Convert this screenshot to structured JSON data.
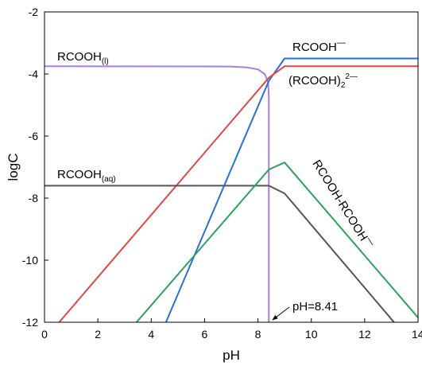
{
  "chart_data": {
    "type": "line",
    "title": "",
    "xlabel": "pH",
    "ylabel": "logC",
    "xlim": [
      0,
      14
    ],
    "ylim": [
      -12,
      -2
    ],
    "xticks": [
      "0",
      "2",
      "4",
      "6",
      "8",
      "10",
      "12",
      "14"
    ],
    "yticks": [
      "-2",
      "-4",
      "-6",
      "-8",
      "-10",
      "-12"
    ],
    "grid": false,
    "legend": "none",
    "series": [
      {
        "name": "RCOOH(l)",
        "color": "#a77de0",
        "points": [
          [
            0,
            -3.75
          ],
          [
            7.0,
            -3.76
          ],
          [
            7.6,
            -3.79
          ],
          [
            8.0,
            -3.85
          ],
          [
            8.25,
            -4.0
          ],
          [
            8.38,
            -4.25
          ],
          [
            8.41,
            -4.7
          ],
          [
            8.41,
            -12
          ]
        ]
      },
      {
        "name": "RCOOH−",
        "color": "#2a6fd6",
        "points": [
          [
            4.55,
            -12.0
          ],
          [
            8.41,
            -4.22
          ],
          [
            9.0,
            -3.5
          ],
          [
            14,
            -3.5
          ]
        ]
      },
      {
        "name": "(RCOOH)2 2−",
        "color": "#e04848",
        "points": [
          [
            0.55,
            -12.0
          ],
          [
            8.41,
            -4.12
          ],
          [
            9.0,
            -3.75
          ],
          [
            14,
            -3.75
          ]
        ]
      },
      {
        "name": "RCOOH(aq)",
        "color": "#555555",
        "points": [
          [
            0,
            -7.6
          ],
          [
            8.41,
            -7.6
          ],
          [
            9.0,
            -7.85
          ],
          [
            13.1,
            -12.0
          ]
        ]
      },
      {
        "name": "RCOOH-RCOOH−",
        "color": "#2aa35a",
        "points": [
          [
            3.45,
            -12.0
          ],
          [
            8.41,
            -7.08
          ],
          [
            9.0,
            -6.85
          ],
          [
            14,
            -11.85
          ]
        ]
      }
    ],
    "annotations": {
      "rcooh_l": {
        "main": "RCOOH",
        "sub": "(l)"
      },
      "rcooh_minus": {
        "main": "RCOOH",
        "sup": "—"
      },
      "dimer": {
        "main": "(RCOOH)",
        "sub": "2",
        "sup": "2—"
      },
      "rcooh_aq": {
        "main": "RCOOH",
        "sub": "(aq)"
      },
      "complex": {
        "main": "RCOOH-RCOOH",
        "sup": "—"
      },
      "ph_mark": "pH=8.41"
    }
  }
}
